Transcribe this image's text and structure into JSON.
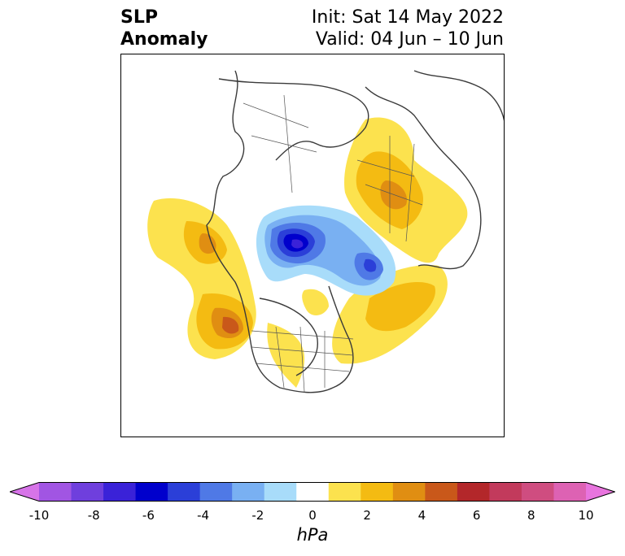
{
  "title": {
    "left_line1": "SLP",
    "left_line2": "Anomaly",
    "right_line1": "Init: Sat 14 May 2022",
    "right_line2": "Valid: 04 Jun – 10 Jun"
  },
  "colorbar": {
    "units": "hPa",
    "tick_labels": [
      "-10",
      "-8",
      "-6",
      "-4",
      "-2",
      "0",
      "2",
      "4",
      "6",
      "8",
      "10"
    ],
    "colors": [
      "#d774e8",
      "#a155e3",
      "#6f3fdd",
      "#3a22d8",
      "#0000cc",
      "#2b3fd8",
      "#4f79e6",
      "#79b0f2",
      "#a8dcfa",
      "#ffffff",
      "#fce24e",
      "#f4bb12",
      "#e08e12",
      "#c9581a",
      "#b3272a",
      "#c23a5c",
      "#cf4d80",
      "#dd62b3",
      "#e874de"
    ],
    "range": [
      -10,
      10
    ]
  },
  "map": {
    "projection": "north-polar-stereographic",
    "variable": "sea-level pressure anomaly"
  }
}
